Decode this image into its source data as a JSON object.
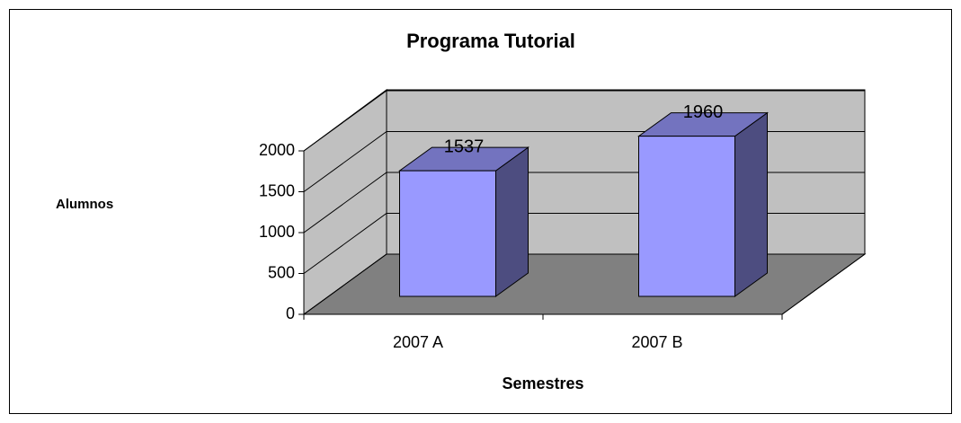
{
  "chart_data": {
    "type": "bar",
    "title": "Programa Tutorial",
    "y_label": "Alumnos",
    "x_label": "Semestres",
    "categories": [
      "2007 A",
      "2007 B"
    ],
    "values": [
      1537,
      1960
    ],
    "color": "#9999ff",
    "ylim": [
      0,
      2000
    ],
    "yticks": [
      0,
      500,
      1000,
      1500,
      2000
    ],
    "grid": true
  }
}
